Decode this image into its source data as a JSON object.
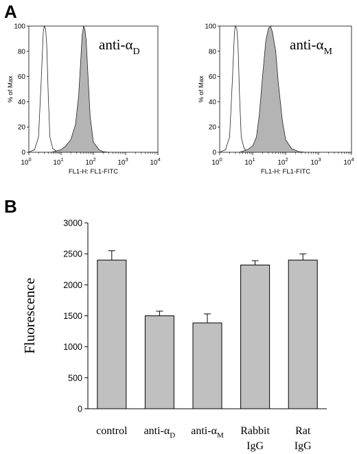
{
  "panel_a": {
    "letter": "A",
    "histograms": [
      {
        "annotation": {
          "prefix": "anti-α",
          "subscript": "D"
        },
        "xlabel": "FL1-H: FL1-FITC",
        "ylabel": "% of Max"
      },
      {
        "annotation": {
          "prefix": "anti-α",
          "subscript": "M"
        },
        "xlabel": "FL1-H: FL1-FITC",
        "ylabel": "% of Max"
      }
    ]
  },
  "panel_b": {
    "letter": "B"
  },
  "chart_data": [
    {
      "type": "line",
      "panel": "A-left",
      "xscale": "log",
      "xlim": [
        1,
        10000
      ],
      "ylim": [
        0,
        100
      ],
      "xticks": [
        1,
        10,
        100,
        1000,
        10000
      ],
      "xtick_labels": [
        {
          "base": "10",
          "exp": "0"
        },
        {
          "base": "10",
          "exp": "1"
        },
        {
          "base": "10",
          "exp": "2"
        },
        {
          "base": "10",
          "exp": "3"
        },
        {
          "base": "10",
          "exp": "4"
        }
      ],
      "yticks": [
        0,
        20,
        40,
        60,
        80,
        100
      ],
      "xlabel": "FL1-H: FL1-FITC",
      "ylabel": "% of Max",
      "series": [
        {
          "style": "open",
          "x": [
            1,
            1.5,
            2,
            2.4,
            2.8,
            3.0,
            3.3,
            3.6,
            4.0,
            4.5,
            5.5,
            7,
            10,
            15,
            30
          ],
          "y": [
            0,
            2,
            12,
            55,
            95,
            100,
            98,
            85,
            45,
            12,
            3,
            1,
            0.5,
            0.2,
            0
          ]
        },
        {
          "style": "filled",
          "x": [
            5,
            10,
            14,
            20,
            28,
            35,
            40,
            45,
            50,
            55,
            60,
            70,
            80,
            100,
            150,
            200,
            300
          ],
          "y": [
            0,
            2,
            5,
            10,
            22,
            45,
            70,
            93,
            100,
            97,
            88,
            55,
            28,
            8,
            2,
            0.5,
            0
          ]
        }
      ]
    },
    {
      "type": "line",
      "panel": "A-right",
      "xscale": "log",
      "xlim": [
        1,
        10000
      ],
      "ylim": [
        0,
        100
      ],
      "xticks": [
        1,
        10,
        100,
        1000,
        10000
      ],
      "xtick_labels": [
        {
          "base": "10",
          "exp": "0"
        },
        {
          "base": "10",
          "exp": "1"
        },
        {
          "base": "10",
          "exp": "2"
        },
        {
          "base": "10",
          "exp": "3"
        },
        {
          "base": "10",
          "exp": "4"
        }
      ],
      "yticks": [
        0,
        20,
        40,
        60,
        80,
        100
      ],
      "xlabel": "FL1-H: FL1-FITC",
      "ylabel": "% of Max",
      "series": [
        {
          "style": "open",
          "x": [
            1,
            1.5,
            2,
            2.4,
            2.8,
            3.0,
            3.3,
            3.6,
            4.0,
            4.5,
            5.5,
            7,
            10,
            15,
            30
          ],
          "y": [
            0,
            2,
            12,
            55,
            95,
            100,
            98,
            85,
            45,
            12,
            3,
            1,
            0.5,
            0.2,
            0
          ]
        },
        {
          "style": "filled",
          "x": [
            4,
            7,
            10,
            13,
            16,
            20,
            25,
            30,
            35,
            40,
            50,
            60,
            80,
            100,
            150,
            250,
            400
          ],
          "y": [
            0,
            2,
            5,
            12,
            30,
            60,
            88,
            98,
            100,
            95,
            80,
            55,
            25,
            10,
            3,
            0.5,
            0
          ]
        }
      ]
    },
    {
      "type": "bar",
      "panel": "B",
      "ylabel": "Fluorescence",
      "ylim": [
        0,
        3000
      ],
      "yticks": [
        0,
        500,
        1000,
        1500,
        2000,
        2500,
        3000
      ],
      "categories": [
        {
          "line1": "control",
          "line2": "",
          "sub": ""
        },
        {
          "line1": "anti-α",
          "line2": "",
          "sub": "D"
        },
        {
          "line1": "anti-α",
          "line2": "",
          "sub": "M"
        },
        {
          "line1": "Rabbit",
          "line2": "IgG",
          "sub": ""
        },
        {
          "line1": "Rat",
          "line2": "IgG",
          "sub": ""
        }
      ],
      "values": [
        2400,
        1500,
        1385,
        2320,
        2400
      ],
      "errors": [
        150,
        75,
        145,
        70,
        100
      ]
    }
  ]
}
